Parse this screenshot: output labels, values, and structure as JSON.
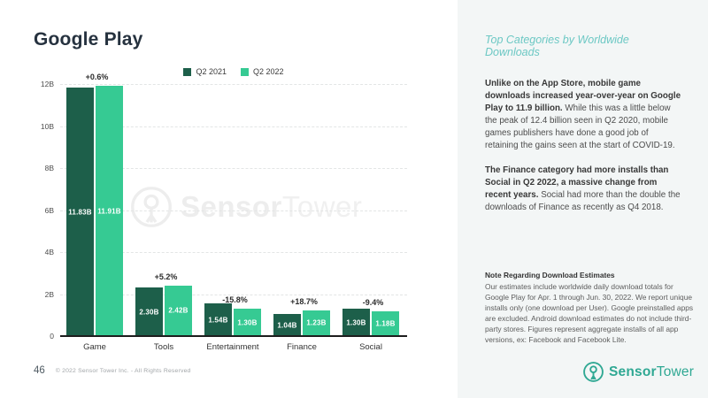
{
  "page": {
    "title": "Google Play",
    "page_number": "46",
    "copyright": "© 2022 Sensor Tower Inc. - All Rights Reserved",
    "brand": {
      "name_bold": "Sensor",
      "name_regular": "Tower"
    }
  },
  "watermark": {
    "text_bold": "Sensor",
    "text_regular": "Tower"
  },
  "chart_data": {
    "type": "bar",
    "title": "Google Play",
    "categories": [
      "Game",
      "Tools",
      "Entertainment",
      "Finance",
      "Social"
    ],
    "series": [
      {
        "name": "Q2 2021",
        "color": "#1d5f4a",
        "values": [
          11.83,
          2.3,
          1.54,
          1.04,
          1.3
        ],
        "labels": [
          "11.83B",
          "2.30B",
          "1.54B",
          "1.04B",
          "1.30B"
        ]
      },
      {
        "name": "Q2 2022",
        "color": "#36ca93",
        "values": [
          11.91,
          2.42,
          1.3,
          1.23,
          1.18
        ],
        "labels": [
          "11.91B",
          "2.42B",
          "1.30B",
          "1.23B",
          "1.18B"
        ]
      }
    ],
    "pct_change": [
      "+0.6%",
      "+5.2%",
      "-15.8%",
      "+18.7%",
      "-9.4%"
    ],
    "y_ticks": [
      "0",
      "2B",
      "4B",
      "6B",
      "8B",
      "10B",
      "12B"
    ],
    "ylim": [
      0,
      12
    ],
    "unit": "billions of downloads",
    "legend_position": "top-center",
    "grid": "dashed horizontal"
  },
  "sidebar": {
    "heading": "Top Categories by Worldwide Downloads",
    "p1_bold": "Unlike on the App Store, mobile game downloads increased year-over-year on Google Play to 11.9 billion.",
    "p1_rest": " While this was a little below the peak of 12.4 billion seen in Q2 2020, mobile games publishers have done a good job of retaining the gains seen at the start of COVID-19.",
    "p2_bold": "The Finance category had more installs than Social in Q2 2022, a massive change from recent years.",
    "p2_rest": " Social had more than the double the downloads of Finance as recently as Q4 2018.",
    "note_title": "Note Regarding Download Estimates",
    "note_body": "Our estimates include worldwide daily download totals for Google Play for Apr. 1 through Jun. 30, 2022. We report unique installs only (one download per User). Google preinstalled apps are excluded. Android download estimates do not include third-party stores. Figures represent aggregate installs of all app versions, ex: Facebook and Facebook Lite."
  }
}
